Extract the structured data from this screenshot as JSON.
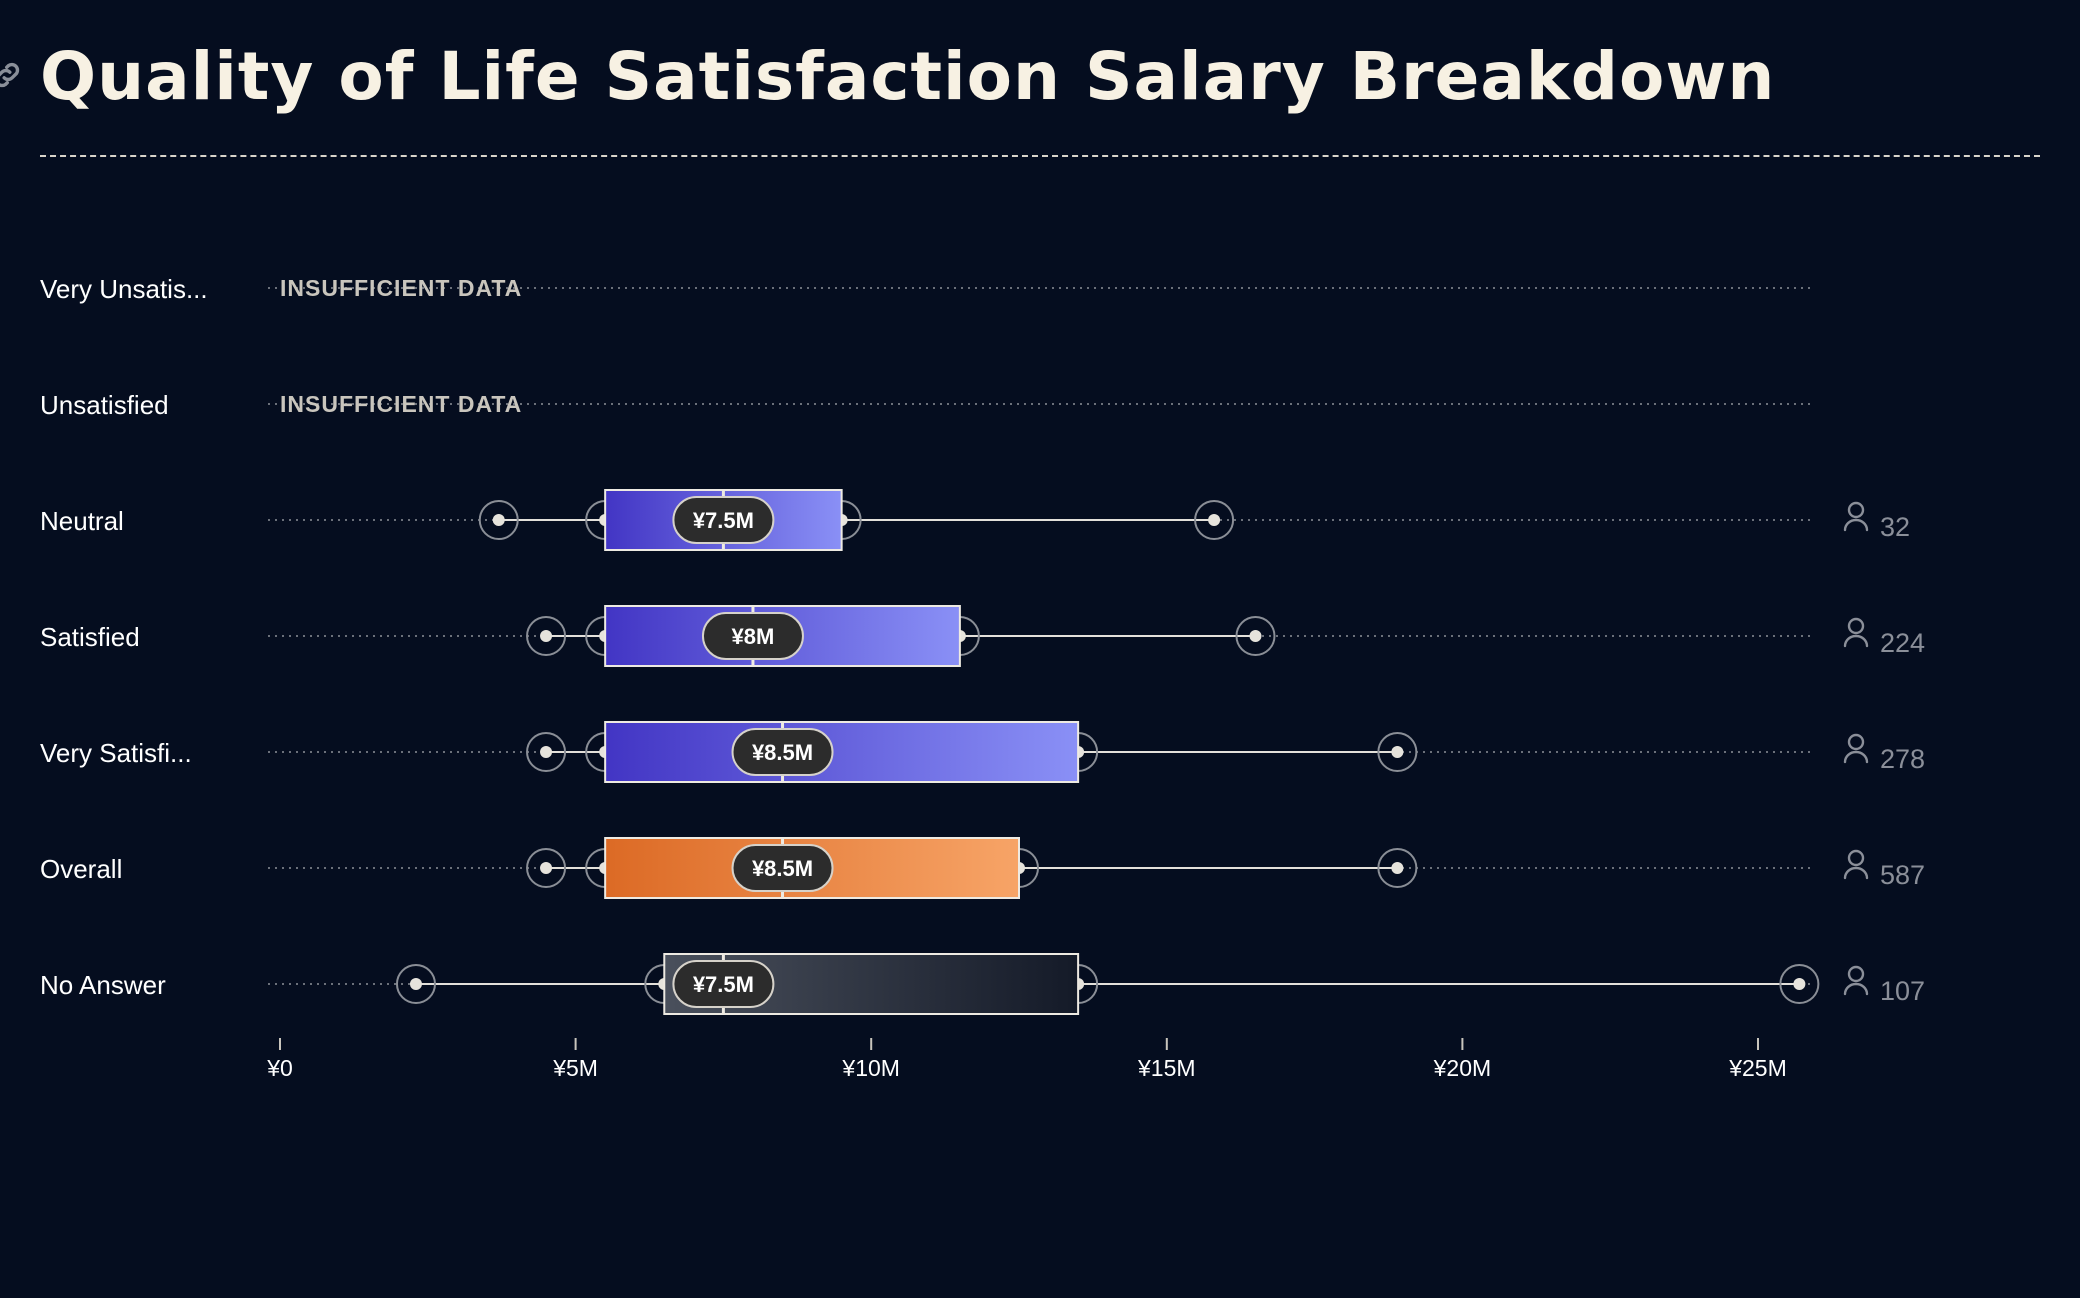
{
  "title": "Quality of Life Satisfaction Salary Breakdown",
  "icons": {
    "header": "link-icon",
    "count": "person-icon"
  },
  "colors": {
    "background": "#050d1f",
    "title": "#f7f1e3",
    "box_blue_start": "#4235c4",
    "box_blue_end": "#8a90f6",
    "box_orange_start": "#dc6a25",
    "box_orange_end": "#f7a467",
    "box_gray_start": "#4a505c",
    "box_gray_end": "#141a28",
    "median_pill": "#2c2c2c"
  },
  "chart_data": {
    "type": "box",
    "title": "Quality of Life Satisfaction Salary Breakdown",
    "xlabel": "",
    "ylabel": "",
    "xlim": [
      0,
      26.5
    ],
    "x_ticks": [
      {
        "value": 0,
        "label": "¥0"
      },
      {
        "value": 5,
        "label": "¥5M"
      },
      {
        "value": 10,
        "label": "¥10M"
      },
      {
        "value": 15,
        "label": "¥15M"
      },
      {
        "value": 20,
        "label": "¥20M"
      },
      {
        "value": 25,
        "label": "¥25M"
      }
    ],
    "grid": false,
    "legend": "none",
    "unit": "¥ millions",
    "rows": [
      {
        "label": "Very Unsatis...",
        "insufficient": true,
        "insufficient_label": "INSUFFICIENT DATA"
      },
      {
        "label": "Unsatisfied",
        "insufficient": true,
        "insufficient_label": "INSUFFICIENT DATA"
      },
      {
        "label": "Neutral",
        "min": 3.7,
        "q1": 5.5,
        "median": 7.5,
        "q3": 9.5,
        "max": 15.8,
        "median_label": "¥7.5M",
        "count": "32",
        "color": "blue"
      },
      {
        "label": "Satisfied",
        "min": 4.5,
        "q1": 5.5,
        "median": 8.0,
        "q3": 11.5,
        "max": 16.5,
        "median_label": "¥8M",
        "count": "224",
        "color": "blue"
      },
      {
        "label": "Very Satisfi...",
        "min": 4.5,
        "q1": 5.5,
        "median": 8.5,
        "q3": 13.5,
        "max": 18.9,
        "median_label": "¥8.5M",
        "count": "278",
        "color": "blue"
      },
      {
        "label": "Overall",
        "min": 4.5,
        "q1": 5.5,
        "median": 8.5,
        "q3": 12.5,
        "max": 18.9,
        "median_label": "¥8.5M",
        "count": "587",
        "color": "orange"
      },
      {
        "label": "No Answer",
        "min": 2.3,
        "q1": 6.5,
        "median": 7.5,
        "q3": 13.5,
        "max": 25.7,
        "median_label": "¥7.5M",
        "count": "107",
        "color": "gray"
      }
    ]
  }
}
